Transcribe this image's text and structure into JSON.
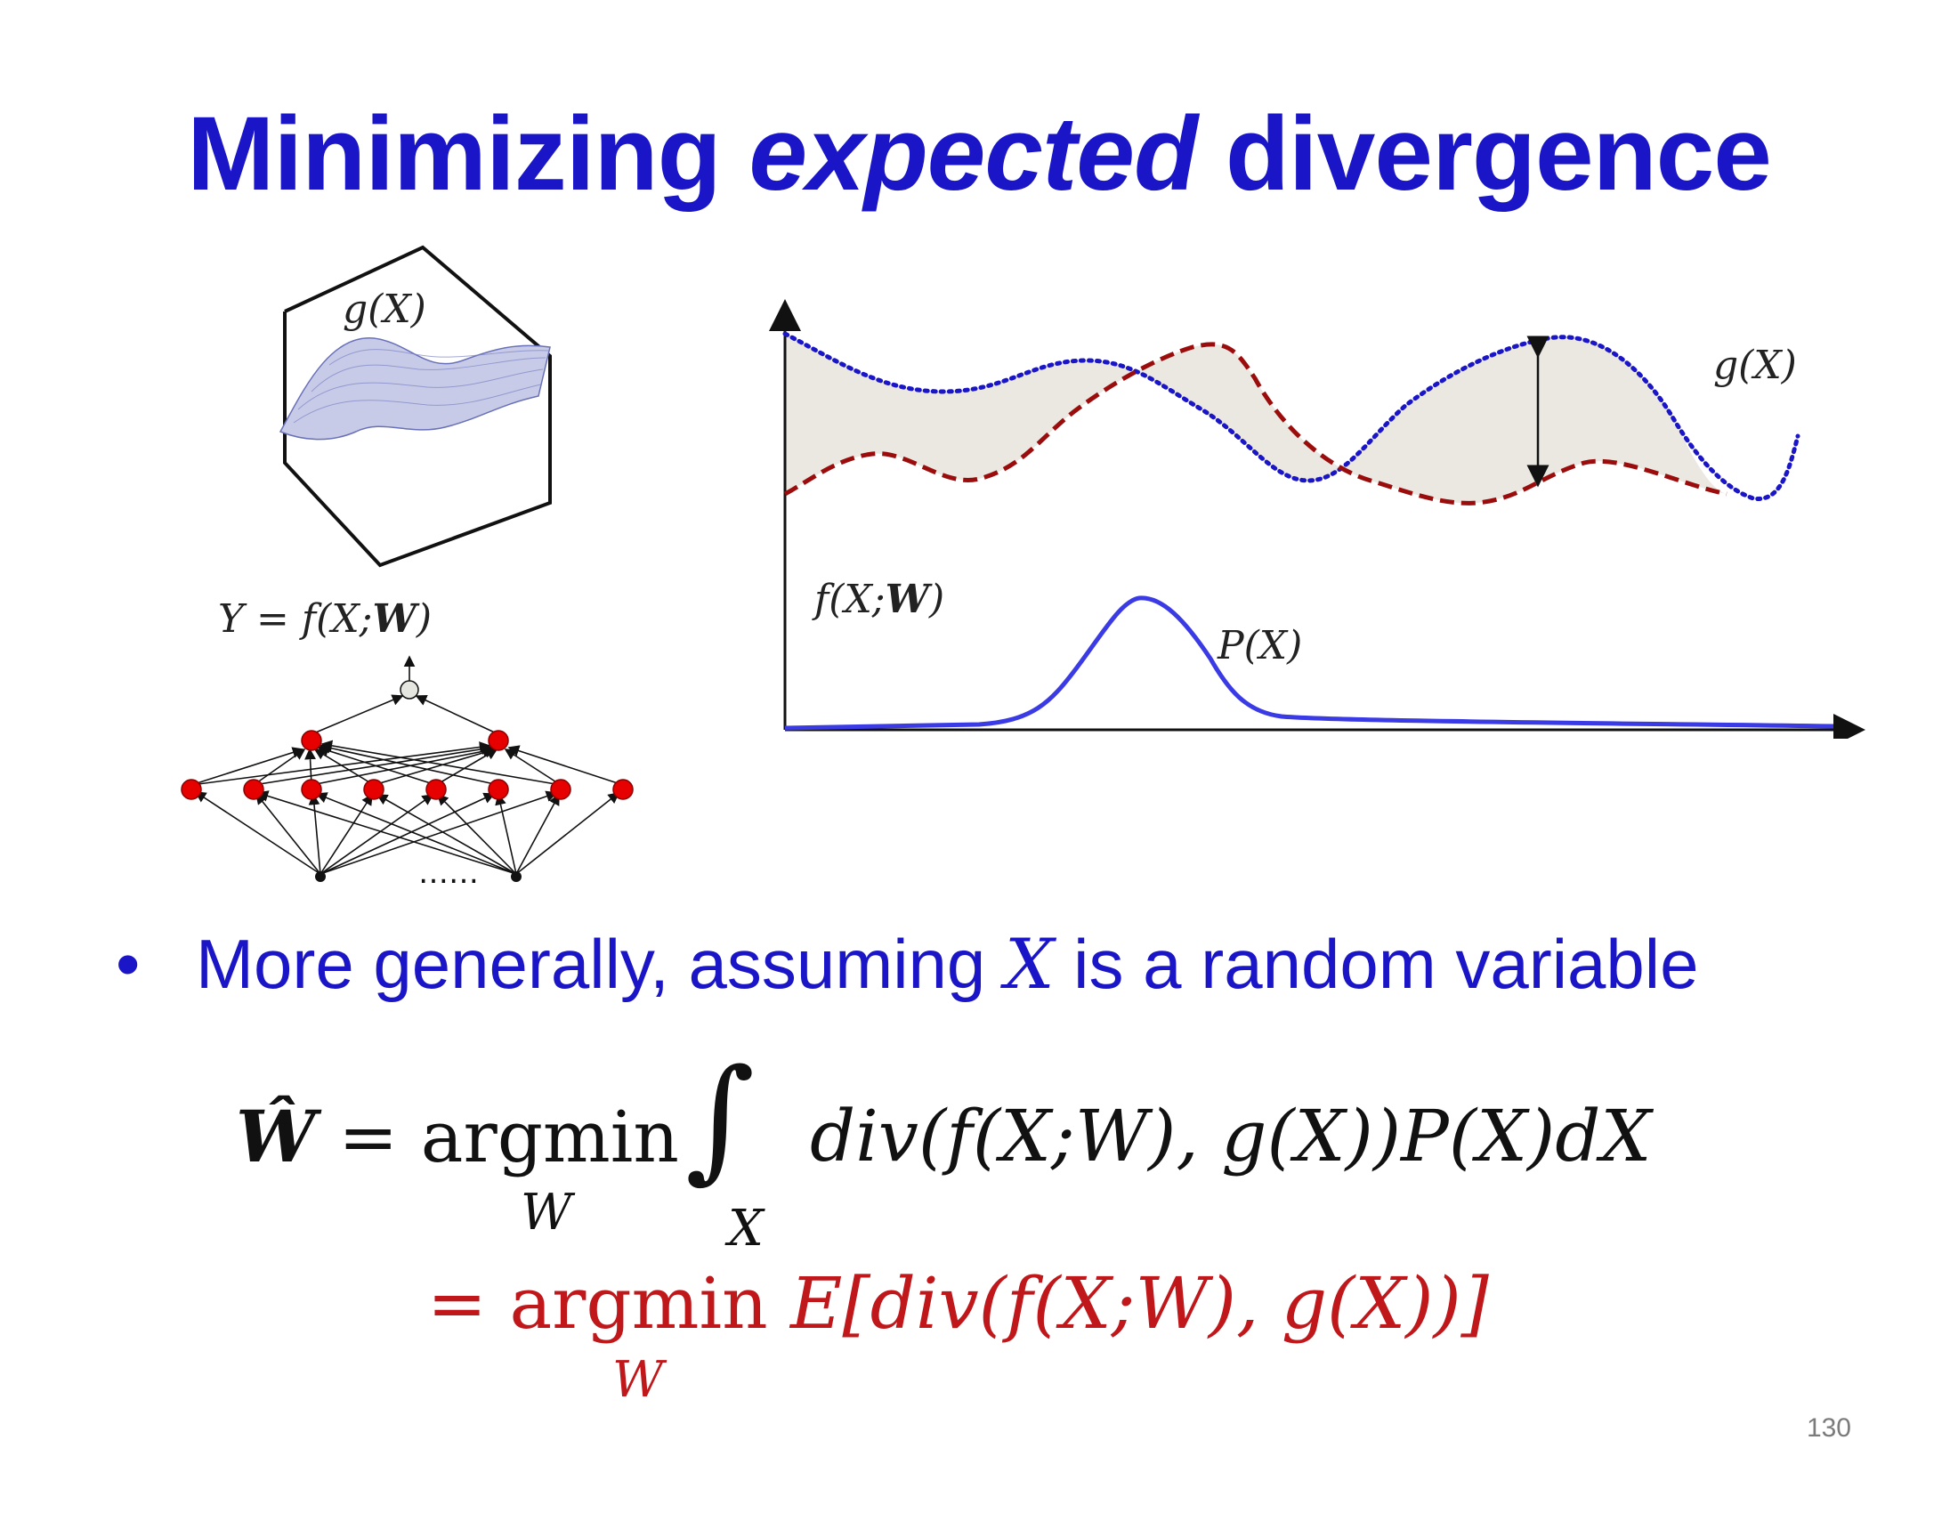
{
  "slide": {
    "title_pre": "Minimizing ",
    "title_em": "expected",
    "title_post": " divergence",
    "page_number": "130"
  },
  "left_figure": {
    "surface_label": "g(X)",
    "network_label_pre": "Y = f(X;",
    "network_label_bold": "W",
    "network_label_post": ")",
    "ellipsis": "……"
  },
  "right_figure": {
    "g_label": "g(X)",
    "f_label_pre": "f(X;",
    "f_label_bold": "W",
    "f_label_post": ")",
    "p_label": "P(X)",
    "colors": {
      "g_curve": "#1a16c8",
      "f_curve": "#9b0d0d",
      "p_curve": "#3b3be6",
      "fill": "#ebe8e1"
    }
  },
  "bullet": {
    "text_pre": "More generally, assuming ",
    "var": "X",
    "text_post": " is a random variable"
  },
  "equation1": {
    "lhs": "Ŵ",
    "equals": "=",
    "argmin": "argmin",
    "argmin_sub": "W",
    "integral": "∫",
    "integral_sub": "X",
    "body": "div(f(X;W), g(X))P(X)dX"
  },
  "equation2": {
    "equals": "=",
    "argmin": "argmin",
    "argmin_sub": "W",
    "body": "E[div(f(X;W), g(X))]"
  }
}
